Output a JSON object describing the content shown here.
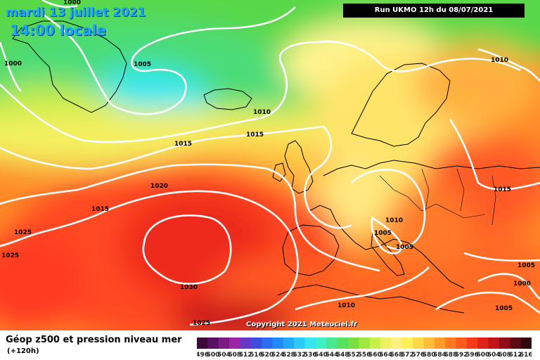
{
  "map": {
    "valid_date": "mardi 13 juillet 2021",
    "valid_time": "14:00 locale",
    "run_info": "Run UKMO 12h du 08/07/2021",
    "copyright": "Copyright 2021 Meteociel.fr",
    "parameter_title": "Géop z500 et pression niveau mer",
    "lead_time": "(+120h)"
  },
  "isobar_labels": [
    "1000",
    "1000",
    "1005",
    "1010",
    "1010",
    "1015",
    "1015",
    "1020",
    "1015",
    "1025",
    "1025",
    "1030",
    "1025",
    "1010",
    "1005",
    "1005",
    "1010",
    "1015",
    "1005",
    "1000",
    "1005"
  ],
  "scale": {
    "ticks": [
      "496",
      "500",
      "504",
      "508",
      "512",
      "516",
      "520",
      "524",
      "528",
      "532",
      "536",
      "540",
      "544",
      "548",
      "552",
      "556",
      "560",
      "564",
      "568",
      "572",
      "576",
      "580",
      "584",
      "588",
      "592",
      "596",
      "600",
      "604",
      "608",
      "612",
      "616"
    ],
    "colors": [
      "#3b0a3b",
      "#5a1060",
      "#7a1a82",
      "#9a26a6",
      "#6a36c8",
      "#3c4ee0",
      "#2a6cf2",
      "#1e8cff",
      "#22aaff",
      "#2ccaff",
      "#38e4f0",
      "#40f0c8",
      "#48e890",
      "#58e060",
      "#78e040",
      "#a0e840",
      "#c8f048",
      "#eef060",
      "#fff080",
      "#fff05a",
      "#ffd848",
      "#ffbc38",
      "#ff9c2a",
      "#ff7a20",
      "#ff5a1a",
      "#f83a18",
      "#e02218",
      "#c0141a",
      "#900c18",
      "#600a14",
      "#300810"
    ]
  },
  "colors": {
    "header_text": "#1aa8ff",
    "isobars": "#ffffff",
    "coastline": "#000000"
  }
}
